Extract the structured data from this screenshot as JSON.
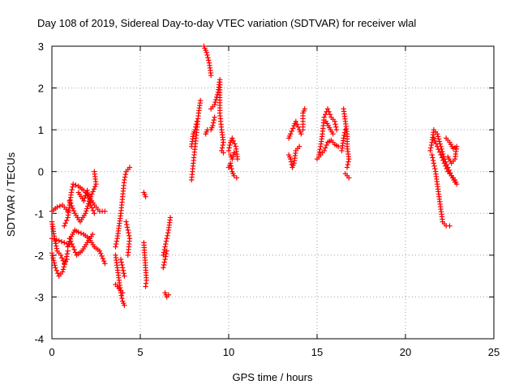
{
  "chart_data": {
    "type": "scatter",
    "title": "Day 108 of 2019, Sidereal Day-to-day VTEC variation (SDTVAR) for receiver wlal",
    "xlabel": "GPS time / hours",
    "ylabel": "SDTVAR / TECUs",
    "xlim": [
      0,
      25
    ],
    "ylim": [
      -4,
      3
    ],
    "xticks": [
      0,
      5,
      10,
      15,
      20,
      25
    ],
    "yticks": [
      -4,
      -3,
      -2,
      -1,
      0,
      1,
      2,
      3
    ],
    "grid": true,
    "marker": "+",
    "color": "#ff0000",
    "series": [
      {
        "name": "SDTVAR",
        "segments": [
          [
            [
              0.0,
              -0.95
            ],
            [
              0.3,
              -0.85
            ],
            [
              0.6,
              -0.8
            ],
            [
              0.9,
              -0.95
            ]
          ],
          [
            [
              0.0,
              -1.6
            ],
            [
              0.4,
              -1.65
            ],
            [
              0.7,
              -1.7
            ],
            [
              1.0,
              -1.75
            ]
          ],
          [
            [
              0.0,
              -1.95
            ],
            [
              0.2,
              -2.3
            ],
            [
              0.4,
              -2.5
            ],
            [
              0.6,
              -2.4
            ],
            [
              0.8,
              -2.1
            ],
            [
              0.9,
              -1.9
            ]
          ],
          [
            [
              0.0,
              -1.2
            ],
            [
              0.15,
              -1.6
            ],
            [
              0.3,
              -1.9
            ],
            [
              0.5,
              -2.0
            ],
            [
              0.7,
              -2.2
            ],
            [
              0.85,
              -2.1
            ]
          ],
          [
            [
              0.7,
              -1.3
            ],
            [
              0.9,
              -1.1
            ],
            [
              1.0,
              -0.8
            ],
            [
              1.1,
              -0.5
            ],
            [
              1.2,
              -0.3
            ],
            [
              1.5,
              -0.35
            ],
            [
              1.8,
              -0.45
            ],
            [
              2.1,
              -0.6
            ],
            [
              2.4,
              -0.8
            ],
            [
              2.7,
              -0.95
            ],
            [
              3.0,
              -0.95
            ]
          ],
          [
            [
              0.9,
              -1.8
            ],
            [
              1.1,
              -1.55
            ],
            [
              1.3,
              -1.4
            ],
            [
              1.5,
              -1.45
            ],
            [
              1.8,
              -1.5
            ],
            [
              2.1,
              -1.6
            ],
            [
              2.4,
              -1.8
            ],
            [
              2.7,
              -1.9
            ],
            [
              3.0,
              -2.2
            ]
          ],
          [
            [
              1.0,
              -0.7
            ],
            [
              1.3,
              -1.0
            ],
            [
              1.6,
              -1.2
            ],
            [
              1.9,
              -1.0
            ],
            [
              2.2,
              -0.6
            ],
            [
              2.5,
              -0.3
            ],
            [
              2.4,
              0.0
            ]
          ],
          [
            [
              1.5,
              -0.5
            ],
            [
              1.8,
              -0.7
            ],
            [
              2.0,
              -0.45
            ],
            [
              2.2,
              -0.8
            ],
            [
              2.4,
              -1.0
            ]
          ],
          [
            [
              1.0,
              -1.6
            ],
            [
              1.2,
              -1.8
            ],
            [
              1.4,
              -2.0
            ],
            [
              1.7,
              -1.9
            ],
            [
              2.0,
              -1.7
            ],
            [
              2.3,
              -1.5
            ]
          ],
          [
            [
              3.6,
              -1.8
            ],
            [
              3.7,
              -1.6
            ],
            [
              3.8,
              -1.3
            ],
            [
              3.9,
              -1.0
            ],
            [
              4.0,
              -0.6
            ],
            [
              4.1,
              -0.2
            ],
            [
              4.2,
              0.0
            ],
            [
              4.4,
              0.1
            ]
          ],
          [
            [
              3.6,
              -2.0
            ],
            [
              3.7,
              -2.3
            ],
            [
              3.8,
              -2.6
            ],
            [
              3.9,
              -2.9
            ],
            [
              4.0,
              -3.1
            ],
            [
              4.1,
              -3.2
            ]
          ],
          [
            [
              3.6,
              -2.7
            ],
            [
              3.8,
              -2.8
            ],
            [
              4.0,
              -2.9
            ]
          ],
          [
            [
              4.2,
              -1.2
            ],
            [
              4.3,
              -1.4
            ],
            [
              4.4,
              -1.6
            ],
            [
              4.3,
              -2.0
            ]
          ],
          [
            [
              3.9,
              -2.1
            ],
            [
              4.0,
              -2.3
            ],
            [
              4.1,
              -2.5
            ]
          ],
          [
            [
              5.2,
              -0.5
            ],
            [
              5.3,
              -0.6
            ]
          ],
          [
            [
              5.2,
              -1.7
            ],
            [
              5.25,
              -2.0
            ],
            [
              5.3,
              -2.3
            ],
            [
              5.35,
              -2.6
            ],
            [
              5.3,
              -2.75
            ]
          ],
          [
            [
              6.3,
              -2.0
            ],
            [
              6.4,
              -1.8
            ],
            [
              6.5,
              -1.6
            ],
            [
              6.6,
              -1.4
            ],
            [
              6.7,
              -1.1
            ]
          ],
          [
            [
              6.3,
              -2.3
            ],
            [
              6.4,
              -2.1
            ],
            [
              6.5,
              -1.9
            ]
          ],
          [
            [
              6.4,
              -2.9
            ],
            [
              6.5,
              -3.0
            ],
            [
              6.6,
              -2.95
            ]
          ],
          [
            [
              7.9,
              -0.2
            ],
            [
              8.0,
              0.2
            ],
            [
              8.1,
              0.6
            ],
            [
              8.2,
              1.0
            ],
            [
              8.3,
              1.4
            ],
            [
              8.4,
              1.7
            ]
          ],
          [
            [
              7.9,
              0.6
            ],
            [
              8.0,
              0.9
            ],
            [
              8.1,
              1.0
            ],
            [
              8.2,
              1.2
            ]
          ],
          [
            [
              8.6,
              3.0
            ],
            [
              8.75,
              2.85
            ],
            [
              8.9,
              2.6
            ],
            [
              9.0,
              2.3
            ]
          ],
          [
            [
              8.7,
              0.9
            ],
            [
              8.8,
              1.0
            ],
            [
              9.0,
              1.0
            ],
            [
              9.1,
              1.1
            ],
            [
              9.2,
              1.3
            ]
          ],
          [
            [
              9.0,
              1.5
            ],
            [
              9.2,
              1.6
            ],
            [
              9.4,
              1.9
            ],
            [
              9.5,
              2.2
            ],
            [
              9.5,
              1.4
            ],
            [
              9.6,
              1.0
            ],
            [
              9.7,
              0.7
            ],
            [
              9.6,
              0.5
            ],
            [
              9.7,
              0.45
            ]
          ],
          [
            [
              10.0,
              0.5
            ],
            [
              10.1,
              0.7
            ],
            [
              10.2,
              0.8
            ],
            [
              10.4,
              0.6
            ],
            [
              10.5,
              0.3
            ]
          ],
          [
            [
              10.0,
              0.1
            ],
            [
              10.1,
              0.2
            ],
            [
              10.2,
              0.0
            ],
            [
              10.3,
              -0.1
            ],
            [
              10.45,
              -0.15
            ]
          ],
          [
            [
              10.1,
              0.4
            ],
            [
              10.2,
              0.3
            ],
            [
              10.3,
              0.45
            ]
          ],
          [
            [
              13.4,
              0.8
            ],
            [
              13.5,
              0.9
            ],
            [
              13.7,
              1.1
            ],
            [
              13.8,
              1.2
            ],
            [
              14.0,
              1.0
            ],
            [
              14.1,
              0.9
            ]
          ],
          [
            [
              13.4,
              0.4
            ],
            [
              13.5,
              0.3
            ],
            [
              13.6,
              0.1
            ],
            [
              13.7,
              0.2
            ],
            [
              13.8,
              0.5
            ],
            [
              14.0,
              0.6
            ]
          ],
          [
            [
              14.2,
              1.0
            ],
            [
              14.2,
              1.4
            ],
            [
              14.3,
              1.5
            ]
          ],
          [
            [
              15.1,
              0.4
            ],
            [
              15.2,
              0.6
            ],
            [
              15.3,
              0.9
            ],
            [
              15.4,
              1.3
            ],
            [
              15.6,
              1.5
            ],
            [
              15.8,
              1.3
            ],
            [
              16.0,
              1.2
            ],
            [
              16.1,
              1.0
            ]
          ],
          [
            [
              15.0,
              0.3
            ],
            [
              15.2,
              0.4
            ],
            [
              15.4,
              0.5
            ],
            [
              15.6,
              0.7
            ],
            [
              15.8,
              0.75
            ],
            [
              16.0,
              0.65
            ],
            [
              16.2,
              0.6
            ]
          ],
          [
            [
              15.5,
              1.2
            ],
            [
              15.7,
              1.05
            ],
            [
              15.9,
              0.9
            ]
          ],
          [
            [
              16.5,
              1.5
            ],
            [
              16.6,
              1.2
            ],
            [
              16.7,
              0.9
            ],
            [
              16.7,
              0.6
            ],
            [
              16.8,
              0.3
            ],
            [
              16.7,
              0.1
            ]
          ],
          [
            [
              16.6,
              -0.05
            ],
            [
              16.7,
              -0.1
            ],
            [
              16.8,
              -0.15
            ]
          ],
          [
            [
              16.4,
              0.5
            ],
            [
              16.5,
              0.8
            ],
            [
              16.6,
              1.0
            ]
          ],
          [
            [
              21.4,
              0.5
            ],
            [
              21.5,
              0.7
            ],
            [
              21.6,
              1.0
            ],
            [
              21.8,
              0.9
            ],
            [
              22.0,
              0.6
            ],
            [
              22.2,
              0.3
            ],
            [
              22.4,
              0.1
            ],
            [
              22.6,
              -0.1
            ],
            [
              22.8,
              -0.2
            ],
            [
              22.9,
              -0.3
            ]
          ],
          [
            [
              21.5,
              0.4
            ],
            [
              21.6,
              0.2
            ],
            [
              21.7,
              0.0
            ],
            [
              21.8,
              -0.3
            ],
            [
              21.9,
              -0.6
            ],
            [
              22.0,
              -0.9
            ],
            [
              22.1,
              -1.2
            ],
            [
              22.3,
              -1.3
            ],
            [
              22.5,
              -1.3
            ]
          ],
          [
            [
              21.6,
              0.8
            ],
            [
              21.8,
              0.6
            ],
            [
              22.0,
              0.4
            ],
            [
              22.2,
              0.2
            ],
            [
              22.4,
              0.0
            ],
            [
              22.6,
              -0.1
            ],
            [
              22.8,
              -0.25
            ]
          ],
          [
            [
              22.3,
              0.8
            ],
            [
              22.5,
              0.7
            ],
            [
              22.7,
              0.55
            ],
            [
              22.9,
              0.6
            ],
            [
              22.8,
              0.3
            ],
            [
              22.6,
              0.2
            ],
            [
              22.4,
              0.35
            ]
          ]
        ]
      }
    ]
  }
}
